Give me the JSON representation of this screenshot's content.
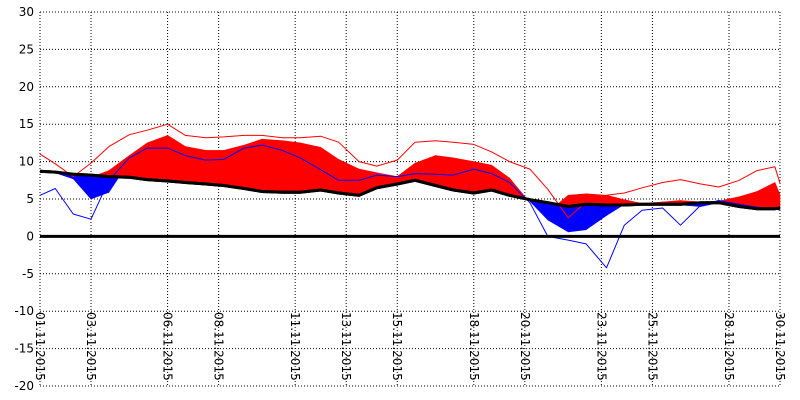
{
  "chart_data": {
    "type": "area",
    "ylim": [
      -20,
      30
    ],
    "yticks": [
      -20,
      -15,
      -10,
      -5,
      0,
      5,
      10,
      15,
      20,
      25,
      30
    ],
    "xticks": [
      {
        "day": 1,
        "label": "01.11.2015"
      },
      {
        "day": 3,
        "label": "03.11.2015"
      },
      {
        "day": 6,
        "label": "06.11.2015"
      },
      {
        "day": 8,
        "label": "08.11.2015"
      },
      {
        "day": 11,
        "label": "11.11.2015"
      },
      {
        "day": 13,
        "label": "13.11.2015"
      },
      {
        "day": 15,
        "label": "15.11.2015"
      },
      {
        "day": 18,
        "label": "18.11.2015"
      },
      {
        "day": 20,
        "label": "20.11.2015"
      },
      {
        "day": 23,
        "label": "23.11.2015"
      },
      {
        "day": 25,
        "label": "25.11.2015"
      },
      {
        "day": 28,
        "label": "28.11.2015"
      },
      {
        "day": 30,
        "label": "30.11.2015"
      }
    ],
    "x": [
      1,
      1.6,
      2.3,
      3,
      3.7,
      4.5,
      5.2,
      6,
      6.7,
      7.5,
      8.2,
      9,
      9.7,
      10.5,
      11.2,
      12,
      12.7,
      13.5,
      14.2,
      15,
      15.7,
      16.5,
      17.2,
      18,
      18.7,
      19.4,
      20.2,
      20.9,
      21.7,
      22.4,
      23.2,
      23.9,
      24.6,
      25.4,
      26.1,
      26.9,
      27.6,
      28.4,
      29.1,
      29.8,
      30
    ],
    "series": [
      {
        "color": "#000000",
        "values": [
          8.7,
          8.6,
          8.3,
          8.2,
          8.0,
          7.9,
          7.6,
          7.4,
          7.2,
          7.0,
          6.8,
          6.4,
          6.0,
          5.9,
          5.9,
          6.2,
          5.8,
          5.5,
          6.5,
          7.0,
          7.5,
          6.8,
          6.2,
          5.8,
          6.2,
          5.5,
          4.9,
          4.5,
          4.0,
          4.3,
          4.2,
          4.2,
          4.3,
          4.3,
          4.3,
          4.5,
          4.5,
          4.0,
          3.7,
          3.7,
          3.8
        ]
      },
      {
        "color": "#0000ff",
        "values": [
          9.0,
          8.5,
          7.7,
          5.0,
          5.9,
          10.0,
          11.5,
          11.3,
          11.0,
          10.5,
          10.2,
          11.0,
          11.9,
          12.2,
          12.0,
          11.8,
          8.8,
          7.3,
          7.0,
          7.3,
          8.0,
          8.3,
          8.0,
          8.5,
          8.5,
          7.5,
          4.7,
          2.2,
          0.6,
          0.9,
          2.8,
          4.3,
          4.4,
          4.4,
          4.2,
          4.0,
          4.5,
          4.4,
          4.0,
          3.8,
          3.7
        ]
      },
      {
        "color": "#ff0000",
        "values": [
          8.7,
          8.2,
          7.5,
          7.9,
          8.8,
          10.8,
          12.5,
          13.5,
          12.0,
          11.5,
          11.5,
          12.2,
          13.0,
          12.8,
          12.5,
          11.9,
          10.3,
          9.0,
          8.5,
          8.0,
          9.8,
          10.8,
          10.5,
          10.0,
          9.5,
          7.8,
          4.5,
          3.2,
          5.5,
          5.7,
          5.5,
          4.9,
          4.4,
          4.6,
          4.8,
          4.6,
          4.7,
          5.3,
          6.0,
          7.2,
          5.6
        ]
      },
      {
        "color": "#ff0000",
        "values": [
          11.0,
          9.7,
          8.0,
          9.8,
          12.0,
          13.6,
          14.2,
          15.0,
          13.5,
          13.2,
          13.3,
          13.5,
          13.5,
          13.2,
          13.2,
          13.4,
          12.6,
          10.0,
          9.4,
          10.2,
          12.6,
          12.8,
          12.6,
          12.3,
          11.3,
          10.0,
          9.0,
          6.3,
          2.5,
          4.6,
          5.5,
          5.8,
          6.5,
          7.2,
          7.6,
          7.0,
          6.6,
          7.5,
          8.8,
          9.3,
          7.1
        ]
      },
      {
        "color": "#0000ff",
        "values": [
          5.5,
          6.4,
          3.0,
          2.3,
          7.5,
          10.5,
          11.8,
          11.8,
          10.8,
          10.2,
          10.3,
          11.8,
          12.2,
          11.5,
          10.5,
          8.9,
          7.5,
          7.5,
          8.2,
          8.0,
          8.4,
          8.3,
          8.2,
          9.0,
          8.4,
          7.2,
          4.5,
          0.0,
          -0.5,
          -1.0,
          -4.2,
          1.5,
          3.5,
          3.8,
          1.5,
          4.2,
          4.8,
          4.3,
          3.9,
          3.7,
          3.5
        ]
      }
    ]
  }
}
